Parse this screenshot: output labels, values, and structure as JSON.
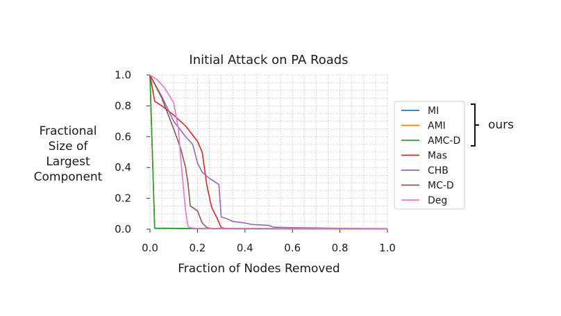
{
  "chart_data": {
    "type": "line",
    "title": "Initial Attack on PA Roads",
    "xlabel": "Fraction of Nodes Removed",
    "ylabel": [
      "Fractional",
      "Size of",
      "Largest",
      "Component"
    ],
    "xlim": [
      0,
      1
    ],
    "ylim": [
      0,
      1
    ],
    "xticks": [
      "0.0",
      "0.2",
      "0.4",
      "0.6",
      "0.8",
      "1.0"
    ],
    "yticks": [
      "0.0",
      "0.2",
      "0.4",
      "0.6",
      "0.8",
      "1.0"
    ],
    "grid": true,
    "legend_position": "right",
    "bracket_label": "ours",
    "bracket_series": [
      "MI",
      "AMI",
      "AMC-D"
    ],
    "series": [
      {
        "name": "MI",
        "color": "#1f77b4",
        "x": [
          0,
          0.02,
          0.2,
          0.5,
          1.0
        ],
        "y": [
          1.0,
          0.005,
          0.003,
          0.002,
          0.002
        ]
      },
      {
        "name": "AMI",
        "color": "#ff7f0e",
        "x": [
          0,
          0.02,
          0.2,
          0.5,
          1.0
        ],
        "y": [
          1.0,
          0.006,
          0.004,
          0.003,
          0.002
        ]
      },
      {
        "name": "AMC-D",
        "color": "#2ca02c",
        "x": [
          0,
          0.02,
          0.2,
          0.5,
          1.0
        ],
        "y": [
          1.0,
          0.007,
          0.005,
          0.004,
          0.003
        ]
      },
      {
        "name": "Mas",
        "color": "#d62728",
        "x": [
          0,
          0.02,
          0.05,
          0.1,
          0.15,
          0.2,
          0.22,
          0.24,
          0.26,
          0.28,
          0.3,
          0.32,
          0.4,
          0.6,
          1.0
        ],
        "y": [
          1.0,
          0.83,
          0.8,
          0.74,
          0.67,
          0.57,
          0.5,
          0.28,
          0.14,
          0.08,
          0.01,
          0.005,
          0.004,
          0.003,
          0.003
        ]
      },
      {
        "name": "CHB",
        "color": "#9467bd",
        "x": [
          0,
          0.05,
          0.1,
          0.15,
          0.18,
          0.2,
          0.22,
          0.25,
          0.28,
          0.29,
          0.3,
          0.32,
          0.35,
          0.4,
          0.43,
          0.5,
          0.52,
          0.6,
          0.7,
          0.8,
          1.0
        ],
        "y": [
          1.0,
          0.86,
          0.7,
          0.6,
          0.55,
          0.43,
          0.37,
          0.33,
          0.3,
          0.29,
          0.08,
          0.07,
          0.05,
          0.04,
          0.03,
          0.025,
          0.013,
          0.01,
          0.008,
          0.006,
          0.004
        ]
      },
      {
        "name": "MC-D",
        "color": "#8c564b",
        "x": [
          0,
          0.05,
          0.1,
          0.13,
          0.15,
          0.16,
          0.17,
          0.2,
          0.22,
          0.24,
          0.26,
          0.4,
          1.0
        ],
        "y": [
          1.0,
          0.85,
          0.65,
          0.52,
          0.4,
          0.3,
          0.15,
          0.12,
          0.04,
          0.01,
          0.005,
          0.004,
          0.003
        ]
      },
      {
        "name": "Deg",
        "color": "#e377c2",
        "x": [
          0,
          0.03,
          0.06,
          0.08,
          0.1,
          0.12,
          0.13,
          0.14,
          0.15,
          0.16,
          0.17,
          0.2,
          0.4,
          1.0
        ],
        "y": [
          1.0,
          0.97,
          0.92,
          0.87,
          0.82,
          0.65,
          0.45,
          0.28,
          0.12,
          0.02,
          0.01,
          0.005,
          0.004,
          0.003
        ]
      }
    ]
  }
}
